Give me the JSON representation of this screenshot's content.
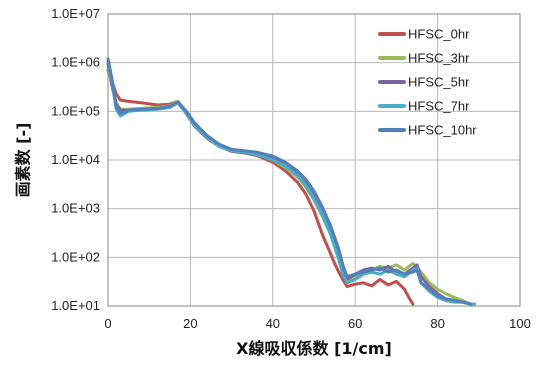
{
  "chart_data": {
    "type": "line",
    "title": "",
    "xlabel": "X線吸収係数 [1/cm]",
    "ylabel": "画素数 [-]",
    "xlim": [
      0,
      100
    ],
    "ylim": [
      10,
      10000000
    ],
    "y_scale": "log",
    "grid": true,
    "legend_position": "top-right",
    "x_ticks": [
      0,
      20,
      40,
      60,
      80,
      100
    ],
    "x_tick_labels": [
      "0",
      "20",
      "40",
      "60",
      "80",
      "100"
    ],
    "y_ticks": [
      10,
      100,
      1000,
      10000,
      100000,
      1000000,
      10000000
    ],
    "y_tick_labels": [
      "1.0E+01",
      "1.0E+02",
      "1.0E+03",
      "1.0E+04",
      "1.0E+05",
      "1.0E+06",
      "1.0E+07"
    ],
    "series": [
      {
        "name": "HFSC_0hr",
        "color": "#c0504d",
        "points": [
          [
            0,
            700000
          ],
          [
            1,
            400000
          ],
          [
            2,
            230000
          ],
          [
            3,
            170000
          ],
          [
            5,
            160000
          ],
          [
            8,
            150000
          ],
          [
            12,
            135000
          ],
          [
            15,
            140000
          ],
          [
            17,
            160000
          ],
          [
            19,
            90000
          ],
          [
            21,
            50000
          ],
          [
            24,
            28000
          ],
          [
            27,
            19000
          ],
          [
            30,
            15000
          ],
          [
            33,
            14000
          ],
          [
            36,
            12500
          ],
          [
            40,
            9000
          ],
          [
            43,
            6000
          ],
          [
            46,
            3500
          ],
          [
            48,
            2000
          ],
          [
            50,
            900
          ],
          [
            52,
            300
          ],
          [
            54,
            120
          ],
          [
            55,
            75
          ],
          [
            56,
            50
          ],
          [
            57,
            35
          ],
          [
            58,
            25
          ],
          [
            60,
            28
          ],
          [
            62,
            30
          ],
          [
            64,
            26
          ],
          [
            66,
            35
          ],
          [
            68,
            27
          ],
          [
            70,
            32
          ],
          [
            72,
            22
          ],
          [
            73,
            15
          ],
          [
            74,
            11
          ]
        ]
      },
      {
        "name": "HFSC_3hr",
        "color": "#9bbb59",
        "points": [
          [
            0,
            900000
          ],
          [
            1,
            300000
          ],
          [
            2,
            150000
          ],
          [
            3,
            110000
          ],
          [
            5,
            110000
          ],
          [
            8,
            115000
          ],
          [
            12,
            120000
          ],
          [
            15,
            130000
          ],
          [
            17,
            160000
          ],
          [
            19,
            95000
          ],
          [
            21,
            55000
          ],
          [
            24,
            30000
          ],
          [
            27,
            20000
          ],
          [
            30,
            16000
          ],
          [
            33,
            15000
          ],
          [
            36,
            13500
          ],
          [
            40,
            10000
          ],
          [
            43,
            7000
          ],
          [
            46,
            4500
          ],
          [
            48,
            2800
          ],
          [
            50,
            1500
          ],
          [
            52,
            700
          ],
          [
            54,
            300
          ],
          [
            56,
            100
          ],
          [
            57,
            55
          ],
          [
            58,
            35
          ],
          [
            60,
            40
          ],
          [
            62,
            50
          ],
          [
            64,
            55
          ],
          [
            66,
            65
          ],
          [
            68,
            60
          ],
          [
            70,
            70
          ],
          [
            72,
            55
          ],
          [
            74,
            75
          ],
          [
            76,
            50
          ],
          [
            78,
            30
          ],
          [
            80,
            22
          ],
          [
            82,
            18
          ],
          [
            84,
            15
          ],
          [
            86,
            13
          ],
          [
            88,
            11
          ]
        ]
      },
      {
        "name": "HFSC_5hr",
        "color": "#8064a2",
        "points": [
          [
            0,
            1000000
          ],
          [
            1,
            350000
          ],
          [
            2,
            140000
          ],
          [
            3,
            105000
          ],
          [
            5,
            105000
          ],
          [
            8,
            110000
          ],
          [
            12,
            115000
          ],
          [
            15,
            125000
          ],
          [
            17,
            155000
          ],
          [
            19,
            95000
          ],
          [
            21,
            56000
          ],
          [
            24,
            31000
          ],
          [
            27,
            20000
          ],
          [
            30,
            16000
          ],
          [
            33,
            15000
          ],
          [
            36,
            14000
          ],
          [
            40,
            11000
          ],
          [
            43,
            8000
          ],
          [
            46,
            5000
          ],
          [
            48,
            3200
          ],
          [
            50,
            1800
          ],
          [
            52,
            850
          ],
          [
            54,
            350
          ],
          [
            56,
            110
          ],
          [
            57,
            55
          ],
          [
            58,
            35
          ],
          [
            60,
            45
          ],
          [
            62,
            55
          ],
          [
            64,
            60
          ],
          [
            66,
            55
          ],
          [
            68,
            65
          ],
          [
            70,
            50
          ],
          [
            72,
            45
          ],
          [
            74,
            60
          ],
          [
            75,
            70
          ],
          [
            76,
            40
          ],
          [
            78,
            25
          ],
          [
            80,
            18
          ],
          [
            82,
            14
          ],
          [
            84,
            13
          ],
          [
            86,
            12
          ],
          [
            88,
            11
          ]
        ]
      },
      {
        "name": "HFSC_7hr",
        "color": "#4bacc6",
        "points": [
          [
            0,
            1100000
          ],
          [
            1,
            400000
          ],
          [
            2,
            110000
          ],
          [
            3,
            80000
          ],
          [
            5,
            100000
          ],
          [
            8,
            105000
          ],
          [
            12,
            110000
          ],
          [
            15,
            120000
          ],
          [
            17,
            150000
          ],
          [
            19,
            90000
          ],
          [
            21,
            52000
          ],
          [
            24,
            29000
          ],
          [
            27,
            19000
          ],
          [
            30,
            15500
          ],
          [
            33,
            14500
          ],
          [
            36,
            13000
          ],
          [
            40,
            10000
          ],
          [
            43,
            7500
          ],
          [
            46,
            4800
          ],
          [
            48,
            3000
          ],
          [
            50,
            1600
          ],
          [
            52,
            750
          ],
          [
            54,
            300
          ],
          [
            56,
            90
          ],
          [
            57,
            45
          ],
          [
            58,
            30
          ],
          [
            60,
            35
          ],
          [
            62,
            45
          ],
          [
            64,
            50
          ],
          [
            66,
            45
          ],
          [
            68,
            55
          ],
          [
            70,
            45
          ],
          [
            72,
            40
          ],
          [
            74,
            55
          ],
          [
            75,
            60
          ],
          [
            76,
            30
          ],
          [
            78,
            20
          ],
          [
            80,
            15
          ],
          [
            82,
            13
          ],
          [
            84,
            12
          ],
          [
            86,
            12
          ],
          [
            88,
            11
          ],
          [
            89,
            11
          ]
        ]
      },
      {
        "name": "HFSC_10hr",
        "color": "#4f81bd",
        "points": [
          [
            0,
            1200000
          ],
          [
            1,
            450000
          ],
          [
            2,
            130000
          ],
          [
            3,
            90000
          ],
          [
            5,
            105000
          ],
          [
            8,
            110000
          ],
          [
            12,
            115000
          ],
          [
            15,
            125000
          ],
          [
            17,
            155000
          ],
          [
            19,
            100000
          ],
          [
            21,
            58000
          ],
          [
            24,
            32000
          ],
          [
            27,
            21000
          ],
          [
            30,
            16500
          ],
          [
            33,
            15500
          ],
          [
            36,
            14500
          ],
          [
            40,
            12000
          ],
          [
            43,
            9000
          ],
          [
            46,
            6000
          ],
          [
            48,
            4000
          ],
          [
            50,
            2300
          ],
          [
            52,
            1100
          ],
          [
            54,
            450
          ],
          [
            56,
            150
          ],
          [
            57,
            70
          ],
          [
            58,
            40
          ],
          [
            60,
            45
          ],
          [
            62,
            50
          ],
          [
            64,
            55
          ],
          [
            66,
            60
          ],
          [
            68,
            50
          ],
          [
            70,
            55
          ],
          [
            72,
            45
          ],
          [
            74,
            50
          ],
          [
            75,
            55
          ],
          [
            76,
            30
          ],
          [
            78,
            22
          ],
          [
            80,
            16
          ],
          [
            82,
            14
          ],
          [
            84,
            13
          ],
          [
            86,
            12
          ],
          [
            88,
            11
          ]
        ]
      }
    ]
  }
}
